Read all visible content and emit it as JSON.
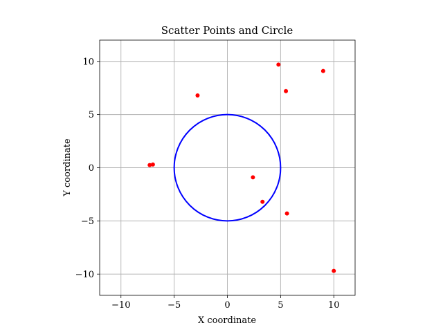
{
  "chart_data": {
    "type": "scatter",
    "title": "Scatter Points and Circle",
    "xlabel": "X coordinate",
    "ylabel": "Y coordinate",
    "xlim": [
      -12,
      12
    ],
    "ylim": [
      -12,
      12
    ],
    "grid": true,
    "xticks": [
      -10,
      -5,
      0,
      5,
      10
    ],
    "yticks": [
      -10,
      -5,
      0,
      5,
      10
    ],
    "xtick_labels": [
      "−10",
      "−5",
      "0",
      "5",
      "10"
    ],
    "ytick_labels": [
      "−10",
      "−5",
      "0",
      "5",
      "10"
    ],
    "points": {
      "color": "#ff0000",
      "x": [
        4.8,
        9.0,
        5.5,
        -2.8,
        -7.3,
        -7.0,
        2.4,
        3.3,
        5.6,
        10.0
      ],
      "y": [
        9.7,
        9.1,
        7.2,
        6.8,
        0.25,
        0.3,
        -0.9,
        -3.2,
        -4.3,
        -9.7
      ]
    },
    "circle": {
      "color": "#0000ff",
      "center": [
        0,
        0
      ],
      "radius": 5
    }
  }
}
